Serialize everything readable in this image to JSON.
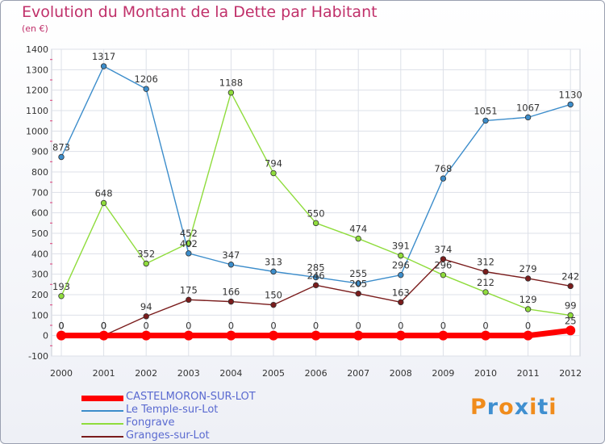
{
  "title": "Evolution du Montant de la Dette par Habitant",
  "unit_label": "(en €)",
  "logo": {
    "text": "Proxiti",
    "letter_colors": [
      "#f08c1c",
      "#3f8fd0",
      "#f08c1c",
      "#3f8fd0",
      "#f08c1c",
      "#3f8fd0",
      "#f08c1c"
    ]
  },
  "chart_data": {
    "type": "line",
    "title": "Evolution du Montant de la Dette par Habitant",
    "ylabel": "(en €)",
    "xlabel": "",
    "x": [
      "2000",
      "2001",
      "2002",
      "2003",
      "2004",
      "2005",
      "2006",
      "2007",
      "2008",
      "2009",
      "2010",
      "2011",
      "2012"
    ],
    "ylim": [
      -100,
      1400
    ],
    "ytick_step": 100,
    "yticks": [
      "-100",
      "0",
      "100",
      "200",
      "300",
      "400",
      "500",
      "600",
      "700",
      "800",
      "900",
      "1000",
      "1100",
      "1200",
      "1300",
      "1400"
    ],
    "grid": true,
    "legend_position": "bottom-left",
    "series": [
      {
        "name": "CASTELMORON-SUR-LOT",
        "color": "#ff0000",
        "values": [
          0,
          0,
          0,
          0,
          0,
          0,
          0,
          0,
          0,
          0,
          0,
          0,
          25
        ],
        "labels": [
          "0",
          "0",
          "0",
          "0",
          "0",
          "0",
          "0",
          "0",
          "0",
          "0",
          "0",
          "0",
          "25"
        ]
      },
      {
        "name": "Le Temple-sur-Lot",
        "color": "#3c8dcb",
        "values": [
          873,
          1317,
          1206,
          402,
          347,
          313,
          285,
          255,
          296,
          768,
          1051,
          1067,
          1130
        ],
        "labels": [
          "873",
          "1317",
          "1206",
          "402",
          "347",
          "313",
          "285",
          "255",
          "296",
          "768",
          "1051",
          "1067",
          "1130"
        ]
      },
      {
        "name": "Fongrave",
        "color": "#8fdc3c",
        "values": [
          193,
          648,
          352,
          452,
          1188,
          794,
          550,
          474,
          391,
          296,
          212,
          129,
          99
        ],
        "labels": [
          "193",
          "648",
          "352",
          "452",
          "1188",
          "794",
          "550",
          "474",
          "391",
          "296",
          "212",
          "129",
          "99"
        ]
      },
      {
        "name": "Granges-sur-Lot",
        "color": "#7a1c1c",
        "values": [
          0,
          0,
          94,
          175,
          166,
          150,
          246,
          205,
          163,
          374,
          312,
          279,
          242
        ],
        "labels": [
          "0",
          "0",
          "94",
          "175",
          "166",
          "150",
          "246",
          "205",
          "163",
          "374",
          "312",
          "279",
          "242"
        ]
      }
    ]
  }
}
